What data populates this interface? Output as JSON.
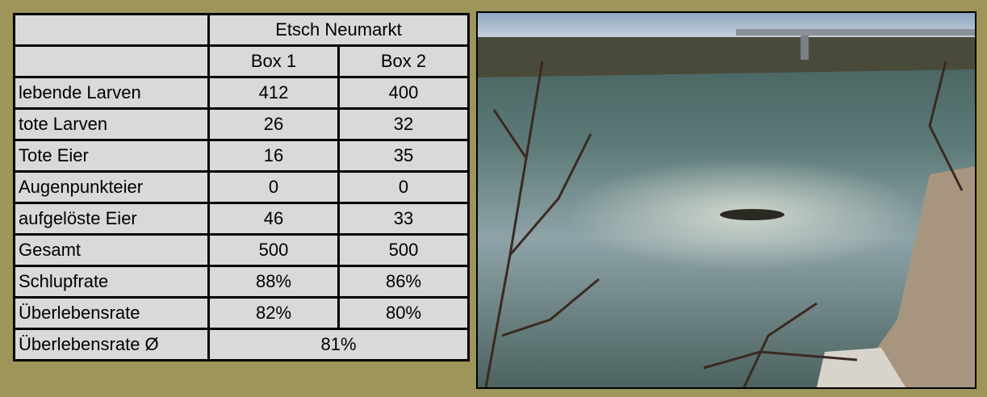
{
  "table": {
    "title": "Etsch Neumarkt",
    "columns": [
      "Box 1",
      "Box 2"
    ],
    "rows": [
      [
        "lebende Larven",
        412,
        400
      ],
      [
        "tote Larven",
        26,
        32
      ],
      [
        "Tote Eier",
        16,
        35
      ],
      [
        "Augenpunkteier",
        0,
        0
      ],
      [
        "aufgelöste Eier",
        46,
        33
      ],
      [
        "Gesamt",
        500,
        500
      ],
      [
        "Schlupfrate",
        "88%",
        "86%"
      ],
      [
        "Überlebensrate",
        "82%",
        "80%"
      ],
      [
        "Überlebensrate Ø",
        "81%"
      ]
    ]
  }
}
